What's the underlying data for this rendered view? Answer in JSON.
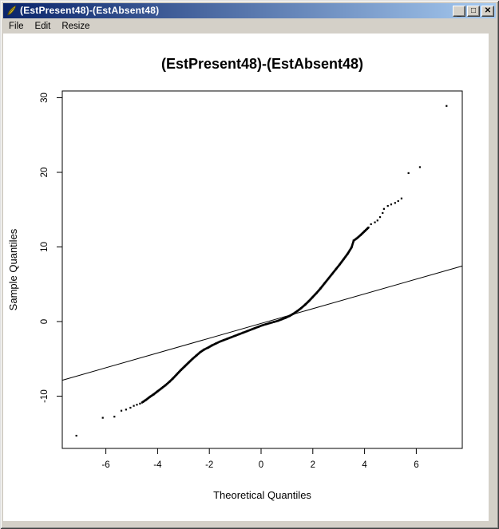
{
  "window": {
    "title": "(EstPresent48)-(EstAbsent48)",
    "icon": "feather-icon",
    "title_gradient": [
      "#0a246a",
      "#a6caf0"
    ],
    "chrome_color": "#d4d0c8",
    "controls": [
      {
        "name": "minimize",
        "glyph": "_"
      },
      {
        "name": "maximize",
        "glyph": "□"
      },
      {
        "name": "close",
        "glyph": "✕"
      }
    ]
  },
  "menu": {
    "items": [
      "File",
      "Edit",
      "Resize"
    ]
  },
  "chart_data": {
    "type": "scatter",
    "title": "(EstPresent48)-(EstAbsent48)",
    "xlabel": "Theoretical Quantiles",
    "ylabel": "Sample Quantiles",
    "xlim": [
      -7.72,
      7.78
    ],
    "ylim": [
      -17.0,
      30.9
    ],
    "x_ticks": [
      -6,
      -4,
      -2,
      0,
      2,
      4,
      6
    ],
    "y_ticks": [
      -10,
      0,
      10,
      20,
      30
    ],
    "grid": false,
    "legend": null,
    "point_color": "#000000",
    "line_color": "#000000",
    "reference_line": {
      "x1": -7.69,
      "y1": -7.87,
      "x2": 7.78,
      "y2": 7.45
    },
    "dense_curve_points": [
      [
        -4.6,
        -10.85
      ],
      [
        -4.45,
        -10.5
      ],
      [
        -4.3,
        -10.1
      ],
      [
        -4.15,
        -9.75
      ],
      [
        -4.0,
        -9.35
      ],
      [
        -3.85,
        -8.95
      ],
      [
        -3.7,
        -8.55
      ],
      [
        -3.55,
        -8.1
      ],
      [
        -3.4,
        -7.6
      ],
      [
        -3.25,
        -7.05
      ],
      [
        -3.1,
        -6.5
      ],
      [
        -2.95,
        -6.0
      ],
      [
        -2.8,
        -5.5
      ],
      [
        -2.65,
        -5.0
      ],
      [
        -2.5,
        -4.55
      ],
      [
        -2.35,
        -4.1
      ],
      [
        -2.2,
        -3.75
      ],
      [
        -2.05,
        -3.5
      ],
      [
        -1.9,
        -3.2
      ],
      [
        -1.75,
        -2.95
      ],
      [
        -1.6,
        -2.7
      ],
      [
        -1.45,
        -2.5
      ],
      [
        -1.3,
        -2.3
      ],
      [
        -1.15,
        -2.1
      ],
      [
        -1.0,
        -1.9
      ],
      [
        -0.85,
        -1.7
      ],
      [
        -0.7,
        -1.5
      ],
      [
        -0.55,
        -1.3
      ],
      [
        -0.4,
        -1.1
      ],
      [
        -0.25,
        -0.9
      ],
      [
        -0.1,
        -0.7
      ],
      [
        0.05,
        -0.5
      ],
      [
        0.2,
        -0.35
      ],
      [
        0.35,
        -0.2
      ],
      [
        0.5,
        -0.05
      ],
      [
        0.65,
        0.1
      ],
      [
        0.8,
        0.3
      ],
      [
        0.95,
        0.5
      ],
      [
        1.1,
        0.75
      ],
      [
        1.25,
        1.05
      ],
      [
        1.4,
        1.4
      ],
      [
        1.55,
        1.8
      ],
      [
        1.7,
        2.25
      ],
      [
        1.85,
        2.75
      ],
      [
        2.0,
        3.3
      ],
      [
        2.15,
        3.85
      ],
      [
        2.3,
        4.45
      ],
      [
        2.45,
        5.1
      ],
      [
        2.6,
        5.75
      ],
      [
        2.75,
        6.4
      ],
      [
        2.9,
        7.05
      ],
      [
        3.05,
        7.7
      ],
      [
        3.2,
        8.4
      ],
      [
        3.35,
        9.1
      ],
      [
        3.5,
        9.95
      ],
      [
        3.58,
        10.85
      ],
      [
        3.7,
        11.15
      ],
      [
        3.85,
        11.6
      ],
      [
        4.0,
        12.1
      ],
      [
        4.15,
        12.6
      ]
    ],
    "sparse_points": [
      [
        -7.14,
        -15.3
      ],
      [
        -6.12,
        -12.9
      ],
      [
        -5.67,
        -12.75
      ],
      [
        -5.4,
        -11.95
      ],
      [
        -5.22,
        -11.8
      ],
      [
        -5.05,
        -11.55
      ],
      [
        -4.92,
        -11.3
      ],
      [
        -4.8,
        -11.15
      ],
      [
        -4.68,
        -11.0
      ],
      [
        4.25,
        13.05
      ],
      [
        4.4,
        13.3
      ],
      [
        4.5,
        13.55
      ],
      [
        4.6,
        14.0
      ],
      [
        4.7,
        14.55
      ],
      [
        4.75,
        15.1
      ],
      [
        4.9,
        15.5
      ],
      [
        5.03,
        15.7
      ],
      [
        5.18,
        15.9
      ],
      [
        5.3,
        16.15
      ],
      [
        5.43,
        16.5
      ],
      [
        5.7,
        19.9
      ],
      [
        6.14,
        20.7
      ],
      [
        7.17,
        28.9
      ]
    ]
  }
}
